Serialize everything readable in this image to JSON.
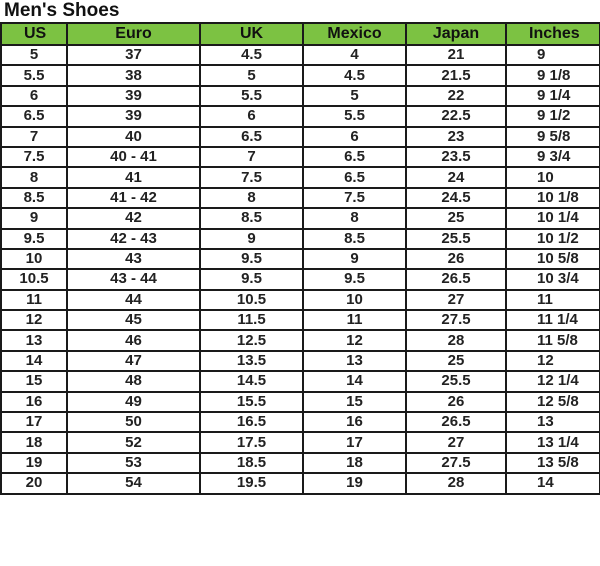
{
  "title": "Men's Shoes",
  "header_color": "#7cc242",
  "columns": [
    "US",
    "Euro",
    "UK",
    "Mexico",
    "Japan",
    "Inches"
  ],
  "rows": [
    [
      "5",
      "37",
      "4.5",
      "4",
      "21",
      "9"
    ],
    [
      "5.5",
      "38",
      "5",
      "4.5",
      "21.5",
      "9 1/8"
    ],
    [
      "6",
      "39",
      "5.5",
      "5",
      "22",
      "9 1/4"
    ],
    [
      "6.5",
      "39",
      "6",
      "5.5",
      "22.5",
      "9 1/2"
    ],
    [
      "7",
      "40",
      "6.5",
      "6",
      "23",
      "9 5/8"
    ],
    [
      "7.5",
      "40 - 41",
      "7",
      "6.5",
      "23.5",
      "9 3/4"
    ],
    [
      "8",
      "41",
      "7.5",
      "6.5",
      "24",
      "10"
    ],
    [
      "8.5",
      "41 - 42",
      "8",
      "7.5",
      "24.5",
      "10 1/8"
    ],
    [
      "9",
      "42",
      "8.5",
      "8",
      "25",
      "10 1/4"
    ],
    [
      "9.5",
      "42 - 43",
      "9",
      "8.5",
      "25.5",
      "10 1/2"
    ],
    [
      "10",
      "43",
      "9.5",
      "9",
      "26",
      "10 5/8"
    ],
    [
      "10.5",
      "43 - 44",
      "9.5",
      "9.5",
      "26.5",
      "10 3/4"
    ],
    [
      "11",
      "44",
      "10.5",
      "10",
      "27",
      "11"
    ],
    [
      "12",
      "45",
      "11.5",
      "11",
      "27.5",
      "11 1/4"
    ],
    [
      "13",
      "46",
      "12.5",
      "12",
      "28",
      "11 5/8"
    ],
    [
      "14",
      "47",
      "13.5",
      "13",
      "25",
      "12"
    ],
    [
      "15",
      "48",
      "14.5",
      "14",
      "25.5",
      "12 1/4"
    ],
    [
      "16",
      "49",
      "15.5",
      "15",
      "26",
      "12 5/8"
    ],
    [
      "17",
      "50",
      "16.5",
      "16",
      "26.5",
      "13"
    ],
    [
      "18",
      "52",
      "17.5",
      "17",
      "27",
      "13 1/4"
    ],
    [
      "19",
      "53",
      "18.5",
      "18",
      "27.5",
      "13 5/8"
    ],
    [
      "20",
      "54",
      "19.5",
      "19",
      "28",
      "14"
    ]
  ]
}
